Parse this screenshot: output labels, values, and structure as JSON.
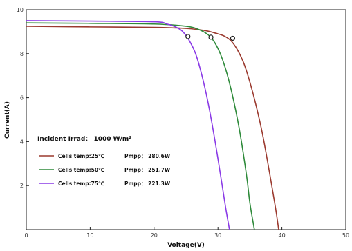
{
  "chart_data": {
    "type": "line",
    "xlabel": "Voltage(V)",
    "ylabel": "Current(A)",
    "xlim": [
      0,
      50
    ],
    "ylim": [
      0,
      10
    ],
    "x_ticks": [
      "0",
      "10",
      "20",
      "30",
      "40",
      "50"
    ],
    "y_ticks": [
      "2",
      "4",
      "6",
      "8",
      "10"
    ],
    "grid": false,
    "legend_position": "lower-left",
    "annotation": "Incident Irrad： 1000 W/m²",
    "series": [
      {
        "name": "Cells temp:25℃",
        "pmpp_label": "Pmpp：  280.6W",
        "color": "#9b3a2f",
        "x": [
          0,
          10,
          20,
          25,
          28,
          30,
          31,
          32,
          33,
          34,
          35,
          36,
          37,
          38,
          39,
          39.5
        ],
        "y": [
          9.25,
          9.22,
          9.2,
          9.15,
          9.05,
          8.9,
          8.8,
          8.6,
          8.2,
          7.6,
          6.7,
          5.6,
          4.3,
          2.7,
          1.0,
          0
        ],
        "mpp": [
          32.3,
          8.7
        ]
      },
      {
        "name": "Cells temp:50℃",
        "pmpp_label": "Pmpp：  251.7W",
        "color": "#2e8a3a",
        "x": [
          0,
          10,
          20,
          25,
          27,
          28.5,
          29.5,
          30.5,
          31.5,
          32.5,
          33.5,
          34.5,
          35,
          35.7
        ],
        "y": [
          9.4,
          9.38,
          9.35,
          9.25,
          9.1,
          8.85,
          8.5,
          7.9,
          7.0,
          5.8,
          4.3,
          2.4,
          1.2,
          0
        ],
        "mpp": [
          28.9,
          8.75
        ]
      },
      {
        "name": "Cells temp:75℃",
        "pmpp_label": "Pmpp：  221.3W",
        "color": "#8a3ae6",
        "x": [
          0,
          10,
          20,
          22,
          23.5,
          24.5,
          25.5,
          26.5,
          27.5,
          28.5,
          29.5,
          30.5,
          31.2,
          31.8
        ],
        "y": [
          9.5,
          9.48,
          9.45,
          9.35,
          9.2,
          9.0,
          8.6,
          8.0,
          7.0,
          5.7,
          4.1,
          2.3,
          1.0,
          0
        ],
        "mpp": [
          25.3,
          8.78
        ]
      }
    ]
  }
}
